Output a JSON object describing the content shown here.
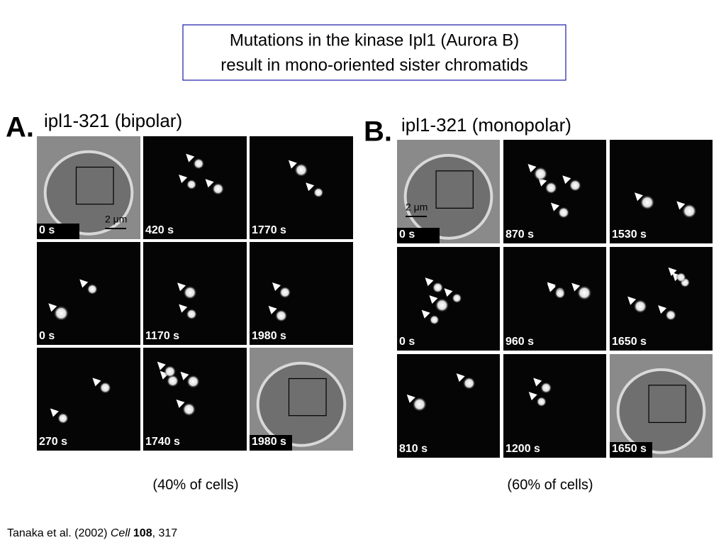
{
  "title": [
    "Mutations in the kinase Ipl1 (Aurora B)",
    "result in mono-oriented sister chromatids"
  ],
  "panels": [
    {
      "label": "A.",
      "heading": "ipl1-321 (bipolar)",
      "frames": [
        "0 s",
        "420 s",
        "1770 s",
        "0 s",
        "1170 s",
        "1980 s",
        "270 s",
        "1740 s",
        "1980 s"
      ],
      "scale_bar": "2 μm",
      "caption": "(40% of cells)"
    },
    {
      "label": "B.",
      "heading": "ipl1-321 (monopolar)",
      "frames": [
        "0 s",
        "870 s",
        "1530 s",
        "0 s",
        "960 s",
        "1650 s",
        "810 s",
        "1200 s",
        "1650 s"
      ],
      "scale_bar": "2 μm",
      "caption": "(60% of cells)"
    }
  ],
  "citation": {
    "authors": "Tanaka et al. (2002)",
    "journal": "Cell",
    "volume": "108",
    "pages": ", 317"
  }
}
